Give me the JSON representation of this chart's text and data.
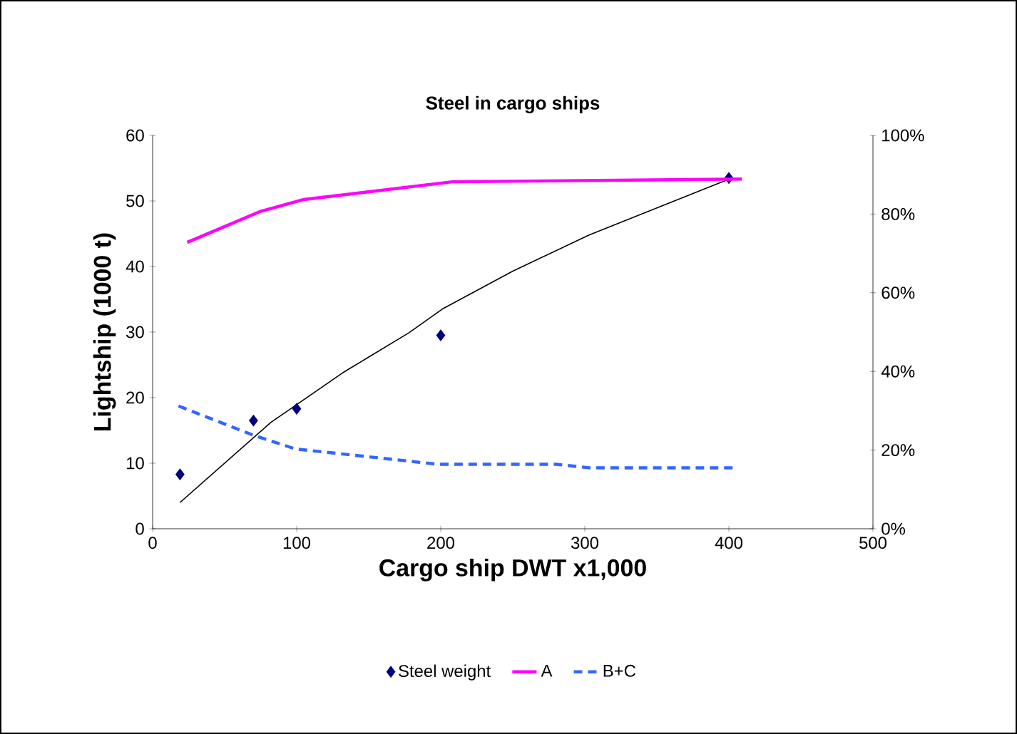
{
  "chart_data": {
    "type": "line",
    "title": "Steel in cargo ships",
    "xlabel": "Cargo ship DWT x1,000",
    "ylabel": "Lightship (1000 t)",
    "xlim": [
      0,
      500
    ],
    "xticks": [
      0,
      100,
      200,
      300,
      400,
      500
    ],
    "ylim": [
      0,
      60
    ],
    "yticks": [
      0,
      10,
      20,
      30,
      40,
      50,
      60
    ],
    "y2lim": [
      0,
      100
    ],
    "y2ticks": [
      {
        "value": 0,
        "label": "0%"
      },
      {
        "value": 20,
        "label": "20%"
      },
      {
        "value": 40,
        "label": "40%"
      },
      {
        "value": 60,
        "label": "60%"
      },
      {
        "value": 80,
        "label": "80%"
      },
      {
        "value": 100,
        "label": "100%"
      }
    ],
    "legend": "bottom",
    "series": [
      {
        "name": "Steel weight",
        "type": "scatter",
        "marker": "diamond",
        "color": "#000080",
        "x": [
          19,
          70,
          100,
          200,
          400
        ],
        "values": [
          8.3,
          16.5,
          18.3,
          29.5,
          53.5
        ]
      },
      {
        "color": "#000000",
        "marker": "none",
        "line_style": "solid",
        "x": [
          19,
          82,
          132,
          178,
          201,
          250,
          303,
          402
        ],
        "values": [
          4.0,
          16.2,
          23.8,
          29.9,
          33.5,
          39.3,
          44.8,
          53.5
        ]
      },
      {
        "name": "A",
        "axis": "y2",
        "color": "#ff00ff",
        "marker": "none",
        "line_style": "solid",
        "x": [
          24,
          75,
          105,
          208,
          409
        ],
        "values": [
          72.8,
          80.7,
          83.7,
          88.2,
          88.9
        ]
      },
      {
        "name": "B+C",
        "axis": "y2",
        "color": "#3366ff",
        "marker": "none",
        "line_style": "dashed",
        "x": [
          18,
          69,
          99,
          198,
          280,
          303,
          405
        ],
        "values": [
          31.2,
          23.9,
          20.3,
          16.4,
          16.4,
          15.5,
          15.5
        ]
      }
    ]
  }
}
